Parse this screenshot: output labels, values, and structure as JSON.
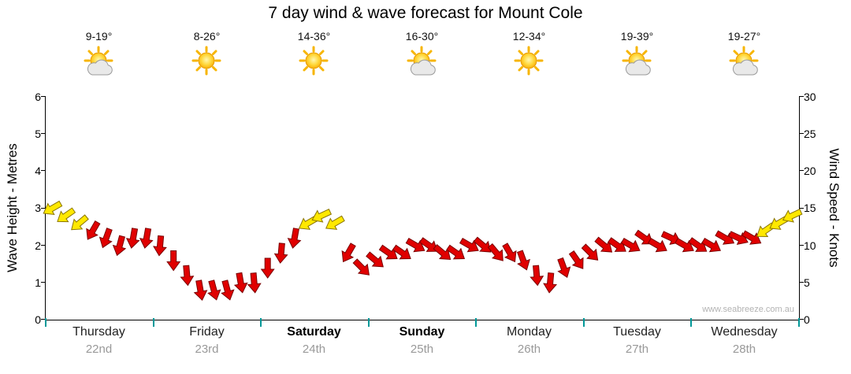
{
  "title": "7 day wind & wave forecast for Mount Cole",
  "watermark": "www.seabreeze.com.au",
  "axes": {
    "left_label": "Wave Height - Metres",
    "right_label": "Wind Speed - Knots",
    "left_ticks": [
      0,
      1,
      2,
      3,
      4,
      5,
      6
    ],
    "right_ticks": [
      0,
      5,
      10,
      15,
      20,
      25,
      30
    ]
  },
  "days": [
    {
      "name": "Thursday",
      "date": "22nd",
      "temp": "9-19°",
      "icon": "sun-cloud",
      "bold": false
    },
    {
      "name": "Friday",
      "date": "23rd",
      "temp": "8-26°",
      "icon": "sun",
      "bold": false
    },
    {
      "name": "Saturday",
      "date": "24th",
      "temp": "14-36°",
      "icon": "sun",
      "bold": true
    },
    {
      "name": "Sunday",
      "date": "25th",
      "temp": "16-30°",
      "icon": "sun-cloud",
      "bold": true
    },
    {
      "name": "Monday",
      "date": "26th",
      "temp": "12-34°",
      "icon": "sun",
      "bold": false
    },
    {
      "name": "Tuesday",
      "date": "27th",
      "temp": "19-39°",
      "icon": "sun-cloud",
      "bold": false
    },
    {
      "name": "Wednesday",
      "date": "28th",
      "temp": "19-27°",
      "icon": "sun-cloud",
      "bold": false
    }
  ],
  "chart_data": {
    "type": "scatter",
    "subtype": "wind-arrow-timeline",
    "title": "7 day wind & wave forecast for Mount Cole",
    "categories": [
      "Thursday 22nd",
      "Friday 23rd",
      "Saturday 24th",
      "Sunday 25th",
      "Monday 26th",
      "Tuesday 27th",
      "Wednesday 28th"
    ],
    "points_per_day": 8,
    "y_left": {
      "label": "Wave Height - Metres",
      "range": [
        0,
        6
      ],
      "ticks": [
        0,
        1,
        2,
        3,
        4,
        5,
        6
      ]
    },
    "y_right": {
      "label": "Wind Speed - Knots",
      "range": [
        0,
        30
      ],
      "ticks": [
        0,
        5,
        10,
        15,
        20,
        25,
        30
      ]
    },
    "colors": {
      "yellow": {
        "fill": "#FFE800",
        "stroke": "#8A7500"
      },
      "red": {
        "fill": "#E00000",
        "stroke": "#7A0000"
      },
      "day_tick": "#009999"
    },
    "series": [
      {
        "name": "Wind speed (knots) with direction arrows",
        "points": [
          {
            "knots": 15,
            "color": "yellow",
            "dir": 150
          },
          {
            "knots": 14,
            "color": "yellow",
            "dir": 145
          },
          {
            "knots": 13,
            "color": "yellow",
            "dir": 140
          },
          {
            "knots": 12,
            "color": "red",
            "dir": 120
          },
          {
            "knots": 11,
            "color": "red",
            "dir": 110
          },
          {
            "knots": 10,
            "color": "red",
            "dir": 105
          },
          {
            "knots": 11,
            "color": "red",
            "dir": 100
          },
          {
            "knots": 11,
            "color": "red",
            "dir": 100
          },
          {
            "knots": 10,
            "color": "red",
            "dir": 95
          },
          {
            "knots": 8,
            "color": "red",
            "dir": 90
          },
          {
            "knots": 6,
            "color": "red",
            "dir": 85
          },
          {
            "knots": 4,
            "color": "red",
            "dir": 80
          },
          {
            "knots": 4,
            "color": "red",
            "dir": 75
          },
          {
            "knots": 4,
            "color": "red",
            "dir": 75
          },
          {
            "knots": 5,
            "color": "red",
            "dir": 80
          },
          {
            "knots": 5,
            "color": "red",
            "dir": 85
          },
          {
            "knots": 7,
            "color": "red",
            "dir": 90
          },
          {
            "knots": 9,
            "color": "red",
            "dir": 95
          },
          {
            "knots": 11,
            "color": "red",
            "dir": 100
          },
          {
            "knots": 13,
            "color": "yellow",
            "dir": 150
          },
          {
            "knots": 14,
            "color": "yellow",
            "dir": 155
          },
          {
            "knots": 13,
            "color": "yellow",
            "dir": 150
          },
          {
            "knots": 9,
            "color": "red",
            "dir": 120
          },
          {
            "knots": 7,
            "color": "red",
            "dir": 45
          },
          {
            "knots": 8,
            "color": "red",
            "dir": 40
          },
          {
            "knots": 9,
            "color": "red",
            "dir": 35
          },
          {
            "knots": 9,
            "color": "red",
            "dir": 35
          },
          {
            "knots": 10,
            "color": "red",
            "dir": 30
          },
          {
            "knots": 10,
            "color": "red",
            "dir": 35
          },
          {
            "knots": 9,
            "color": "red",
            "dir": 40
          },
          {
            "knots": 9,
            "color": "red",
            "dir": 35
          },
          {
            "knots": 10,
            "color": "red",
            "dir": 30
          },
          {
            "knots": 10,
            "color": "red",
            "dir": 40
          },
          {
            "knots": 9,
            "color": "red",
            "dir": 50
          },
          {
            "knots": 9,
            "color": "red",
            "dir": 60
          },
          {
            "knots": 8,
            "color": "red",
            "dir": 70
          },
          {
            "knots": 6,
            "color": "red",
            "dir": 85
          },
          {
            "knots": 5,
            "color": "red",
            "dir": 95
          },
          {
            "knots": 7,
            "color": "red",
            "dir": 70
          },
          {
            "knots": 8,
            "color": "red",
            "dir": 55
          },
          {
            "knots": 9,
            "color": "red",
            "dir": 45
          },
          {
            "knots": 10,
            "color": "red",
            "dir": 40
          },
          {
            "knots": 10,
            "color": "red",
            "dir": 35
          },
          {
            "knots": 10,
            "color": "red",
            "dir": 30
          },
          {
            "knots": 11,
            "color": "red",
            "dir": 35
          },
          {
            "knots": 10,
            "color": "red",
            "dir": 30
          },
          {
            "knots": 11,
            "color": "red",
            "dir": 25
          },
          {
            "knots": 10,
            "color": "red",
            "dir": 30
          },
          {
            "knots": 10,
            "color": "red",
            "dir": 35
          },
          {
            "knots": 10,
            "color": "red",
            "dir": 30
          },
          {
            "knots": 11,
            "color": "red",
            "dir": 30
          },
          {
            "knots": 11,
            "color": "red",
            "dir": 25
          },
          {
            "knots": 11,
            "color": "red",
            "dir": 30
          },
          {
            "knots": 12,
            "color": "yellow",
            "dir": 145
          },
          {
            "knots": 13,
            "color": "yellow",
            "dir": 150
          },
          {
            "knots": 14,
            "color": "yellow",
            "dir": 155
          }
        ]
      }
    ]
  }
}
